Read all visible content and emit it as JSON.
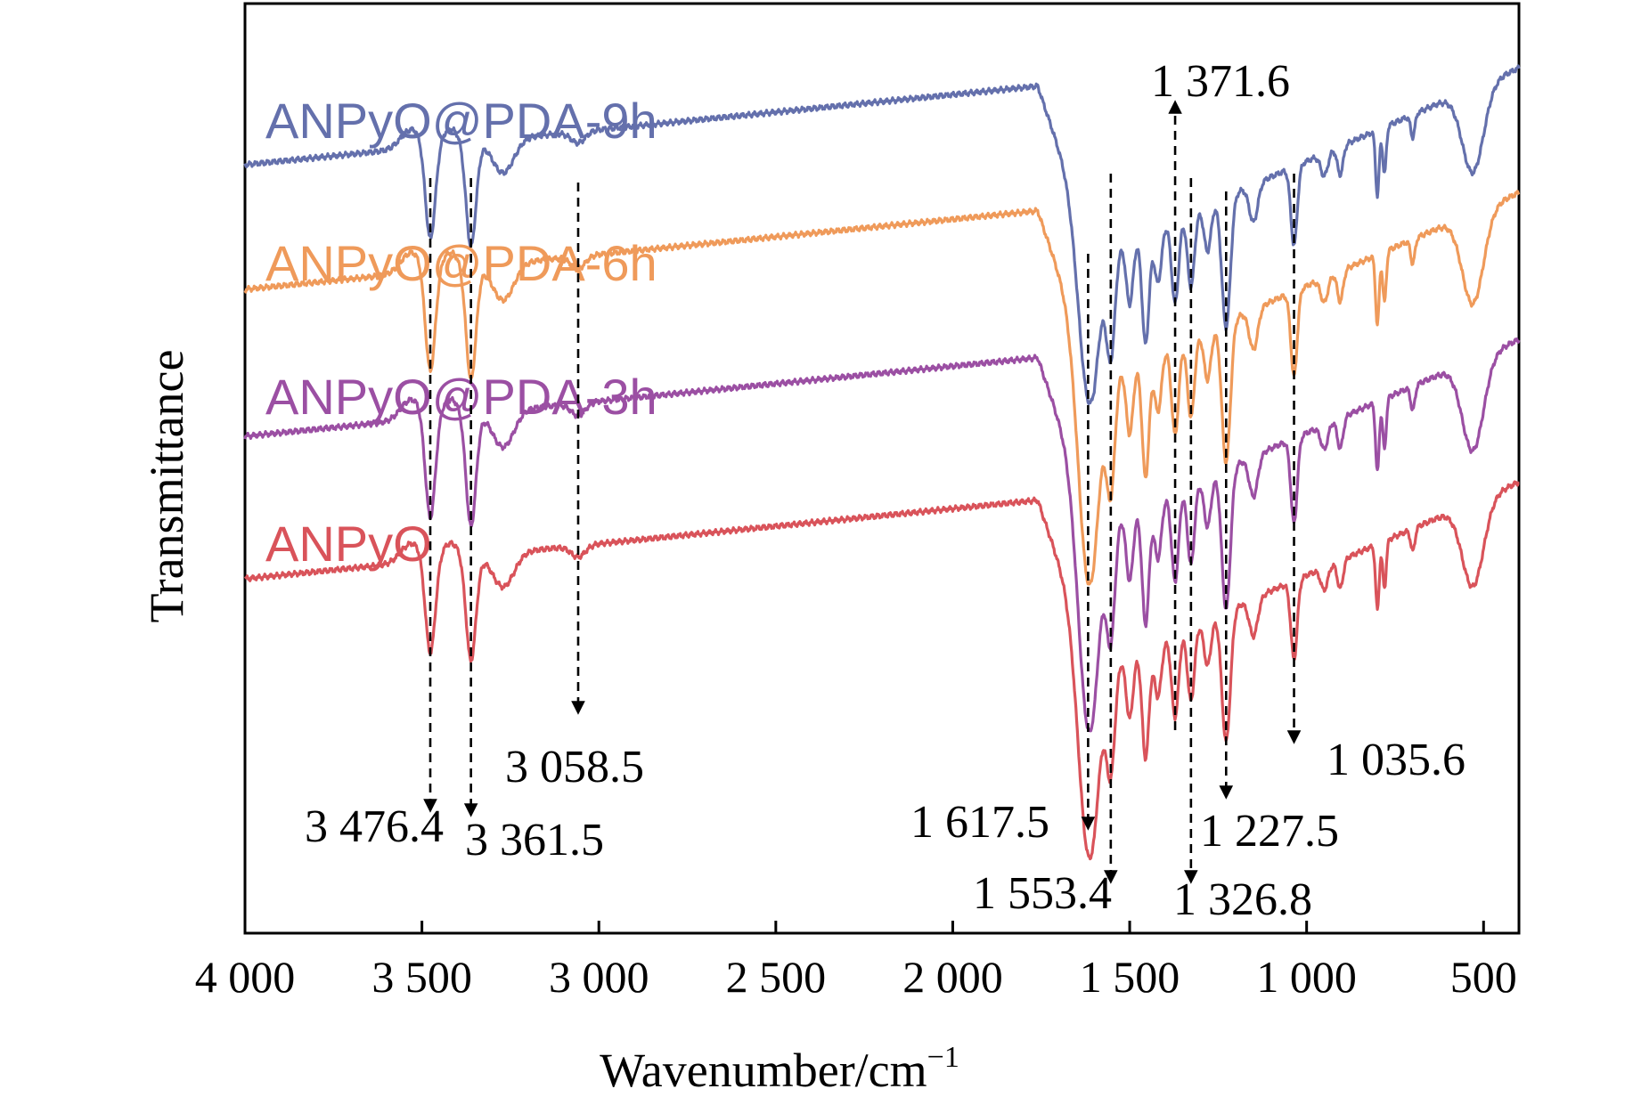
{
  "chart_data": {
    "type": "line",
    "title": "",
    "xlabel": "Wavenumber/cm",
    "xlabel_sup": "−1",
    "ylabel": "Transmittance",
    "xlim": [
      4000,
      400
    ],
    "x_reversed": true,
    "x_ticks": [
      4000,
      3500,
      3000,
      2500,
      2000,
      1500,
      1000,
      500
    ],
    "x_tick_labels": [
      "4 000",
      "3 500",
      "3 000",
      "2 500",
      "2 000",
      "1 500",
      "1 000",
      "500"
    ],
    "y_ticks": [],
    "grid": false,
    "legend": "inline labels above each curve",
    "series": [
      {
        "name": "ANPyO@PDA-9h",
        "color": "#6470ac",
        "offset": 3
      },
      {
        "name": "ANPyO@PDA-6h",
        "color": "#ef9a5a",
        "offset": 2
      },
      {
        "name": "ANPyO@PDA-3h",
        "color": "#9b4fa3",
        "offset": 1
      },
      {
        "name": "ANPyO",
        "color": "#d9535a",
        "offset": 0
      }
    ],
    "annotations": [
      {
        "label": "3 476.4",
        "x": 3476.4
      },
      {
        "label": "3 361.5",
        "x": 3361.5
      },
      {
        "label": "3 058.5",
        "x": 3058.5
      },
      {
        "label": "1 617.5",
        "x": 1617.5
      },
      {
        "label": "1 553.4",
        "x": 1553.4
      },
      {
        "label": "1 371.6",
        "x": 1371.6
      },
      {
        "label": "1 326.8",
        "x": 1326.8
      },
      {
        "label": "1 227.5",
        "x": 1227.5
      },
      {
        "label": "1 035.6",
        "x": 1035.6
      }
    ]
  }
}
